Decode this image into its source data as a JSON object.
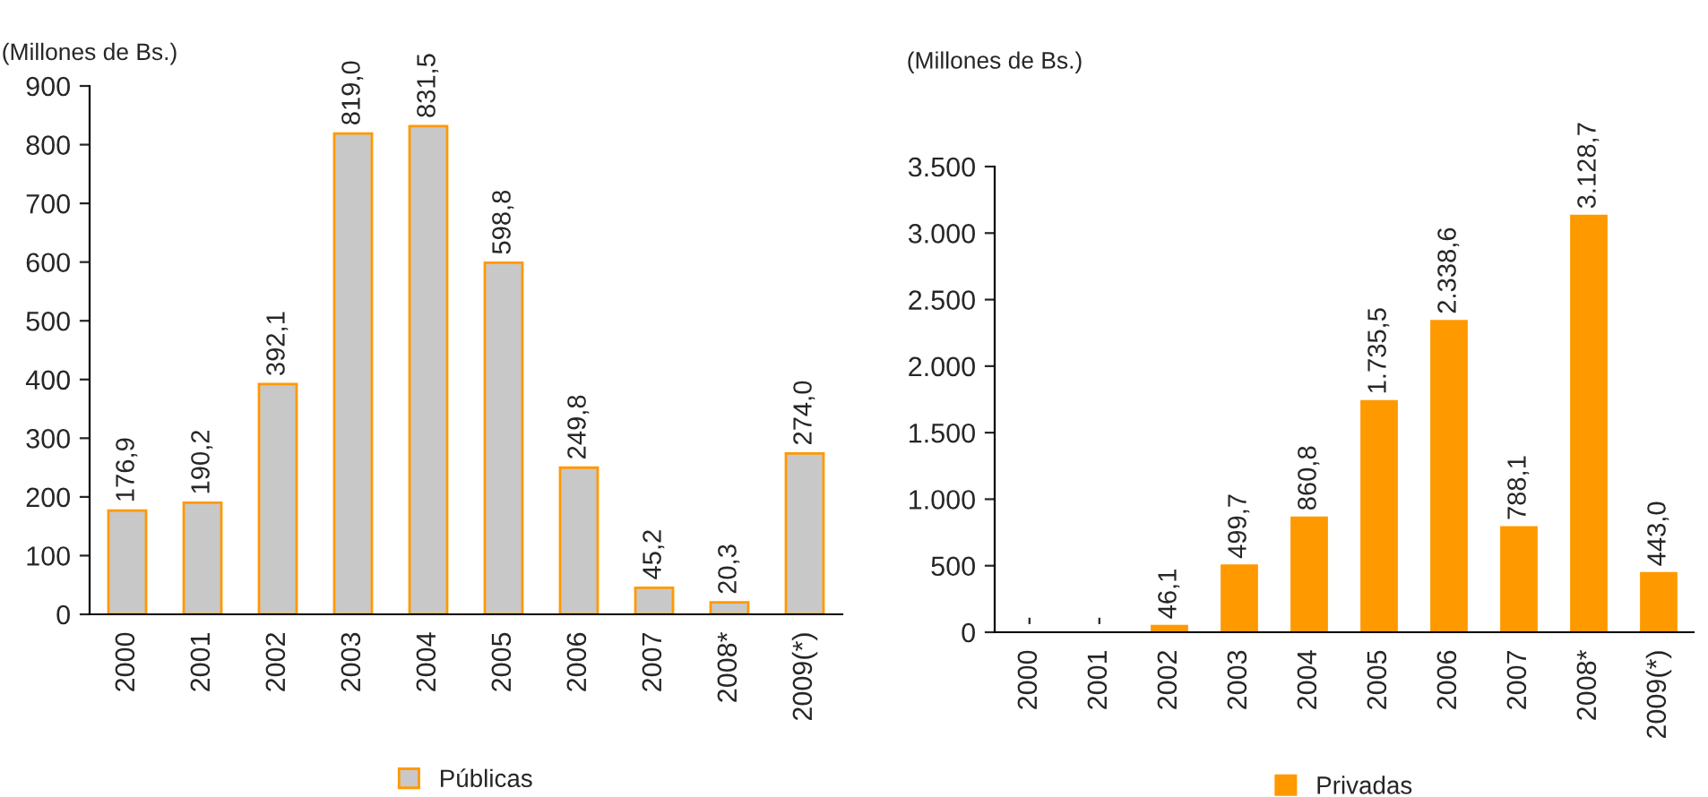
{
  "chart_data": [
    {
      "type": "bar",
      "ylabel": "(Millones de Bs.)",
      "categories": [
        "2000",
        "2001",
        "2002",
        "2003",
        "2004",
        "2005",
        "2006",
        "2007",
        "2008*",
        "2009(*)"
      ],
      "series": [
        {
          "name": "Públicas",
          "color": "#c8c8c8",
          "values": [
            176.9,
            190.2,
            392.1,
            819.0,
            831.5,
            598.8,
            249.8,
            45.2,
            20.3,
            274.0
          ],
          "value_labels": [
            "176,9",
            "190,2",
            "392,1",
            "819,0",
            "831,5",
            "598,8",
            "249,8",
            "45,2",
            "20,3",
            "274,0"
          ]
        }
      ],
      "ylim": [
        0,
        900
      ],
      "yticks": [
        0,
        100,
        200,
        300,
        400,
        500,
        600,
        700,
        800,
        900
      ],
      "grid": false,
      "legend": "bottom"
    },
    {
      "type": "bar",
      "ylabel": "(Millones de Bs.)",
      "categories": [
        "2000",
        "2001",
        "2002",
        "2003",
        "2004",
        "2005",
        "2006",
        "2007",
        "2008*",
        "2009(*)"
      ],
      "series": [
        {
          "name": "Privadas",
          "color": "#ff9900",
          "values": [
            null,
            null,
            46.1,
            499.7,
            860.8,
            1735.5,
            2338.6,
            788.1,
            3128.7,
            443.0
          ],
          "value_labels": [
            "-",
            "-",
            "46,1",
            "499,7",
            "860,8",
            "1.735,5",
            "2.338,6",
            "788,1",
            "3.128,7",
            "443,0"
          ]
        }
      ],
      "ylim": [
        0,
        3500
      ],
      "yticks": [
        0,
        {
          "value": 500,
          "label": "500"
        },
        {
          "value": 1000,
          "label": "1.000"
        },
        {
          "value": 1500,
          "label": "1.500"
        },
        {
          "value": 2000,
          "label": "2.000"
        },
        {
          "value": 2500,
          "label": "2.500"
        },
        {
          "value": 3000,
          "label": "3.000"
        },
        {
          "value": 3500,
          "label": "3.500"
        }
      ],
      "grid": false,
      "legend": "bottom"
    }
  ]
}
